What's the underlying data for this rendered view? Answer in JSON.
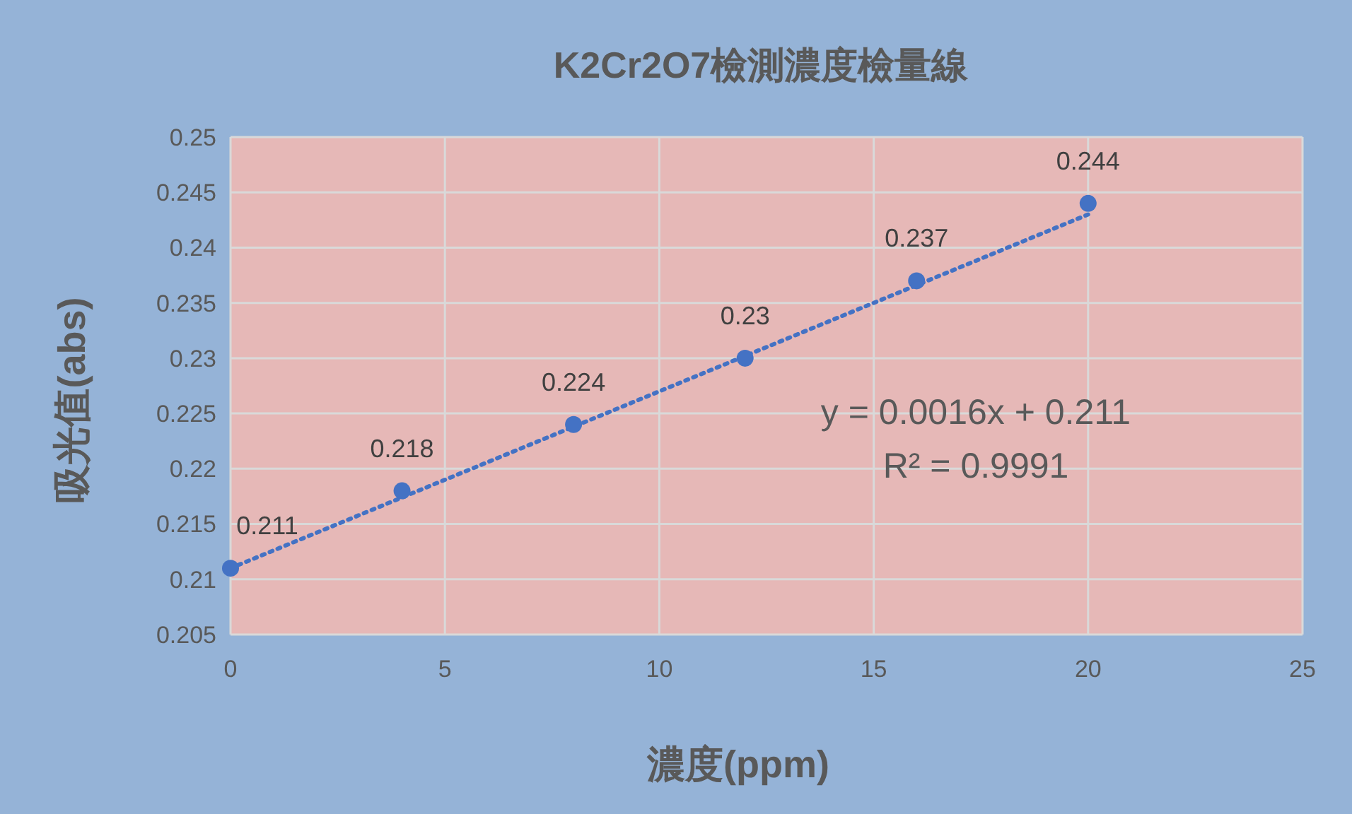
{
  "chart_data": {
    "type": "scatter",
    "title": "K2Cr2O7檢測濃度檢量線",
    "xlabel": "濃度(ppm)",
    "ylabel": "吸光值(abs)",
    "xlim": [
      0,
      25
    ],
    "xticks": [
      0,
      5,
      10,
      15,
      20,
      25
    ],
    "ylim": [
      0.205,
      0.25
    ],
    "yticks": [
      0.205,
      0.21,
      0.215,
      0.22,
      0.225,
      0.23,
      0.235,
      0.24,
      0.245,
      0.25
    ],
    "grid": true,
    "series": [
      {
        "color": "#4472c4",
        "marker": "circle",
        "x": [
          0,
          4,
          8,
          12,
          16,
          20
        ],
        "values": [
          0.211,
          0.218,
          0.224,
          0.23,
          0.237,
          0.244
        ],
        "value_labels": [
          "0.211",
          "0.218",
          "0.224",
          "0.23",
          "0.237",
          "0.244"
        ]
      },
      {
        "type": "line",
        "color": "#4472c4",
        "marker": "none",
        "line_style": "dotted",
        "x": [
          0,
          20
        ],
        "values": [
          0.211,
          0.243
        ]
      }
    ],
    "annotations": [
      "y = 0.0016x + 0.211",
      "R² = 0.9991"
    ]
  }
}
